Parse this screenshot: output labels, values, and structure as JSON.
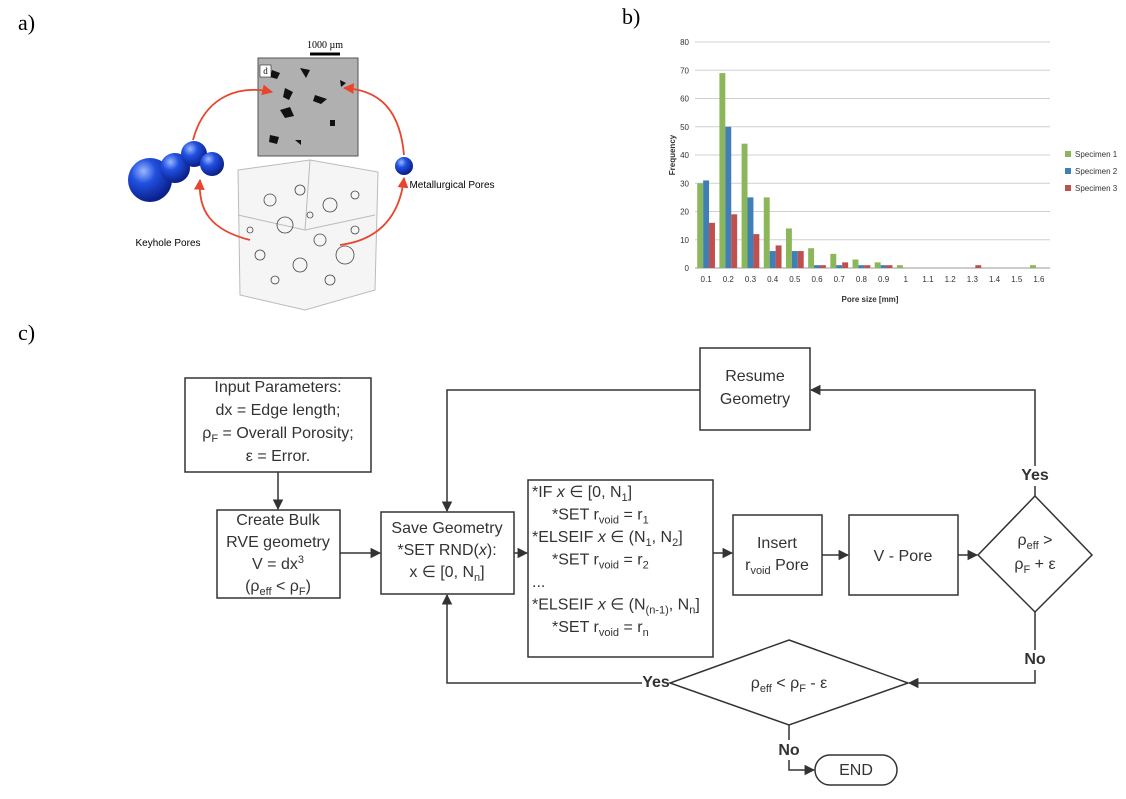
{
  "panel_labels": [
    "a)",
    "b)",
    "c)"
  ],
  "panel_a": {
    "scale_bar": "1000 µm",
    "inset_label": "d",
    "labels": [
      "Keyhole Pores",
      "Metallurgical Pores"
    ]
  },
  "chart_data": {
    "type": "bar",
    "ylabel": "Frequency",
    "xlabel": "Pore size [mm]",
    "categories": [
      "0.1",
      "0.2",
      "0.3",
      "0.4",
      "0.5",
      "0.6",
      "0.7",
      "0.8",
      "0.9",
      "1",
      "1.1",
      "1.2",
      "1.3",
      "1.4",
      "1.5",
      "1.6"
    ],
    "series": [
      {
        "name": "Specimen 1",
        "color": "#8cb65a",
        "values": [
          30,
          69,
          44,
          25,
          14,
          7,
          5,
          3,
          2,
          1,
          0,
          0,
          0,
          0,
          0,
          1
        ]
      },
      {
        "name": "Specimen 2",
        "color": "#3f7fb5",
        "values": [
          31,
          50,
          25,
          6,
          6,
          1,
          1,
          1,
          1,
          0,
          0,
          0,
          0,
          0,
          0,
          0
        ]
      },
      {
        "name": "Specimen 3",
        "color": "#c0504d",
        "values": [
          16,
          19,
          12,
          8,
          6,
          1,
          2,
          1,
          1,
          0,
          0,
          0,
          1,
          0,
          0,
          0
        ]
      }
    ],
    "ylim": [
      0,
      80
    ],
    "yticks": [
      0,
      10,
      20,
      30,
      40,
      50,
      60,
      70,
      80
    ],
    "grid": true,
    "legend": "right"
  },
  "flowchart": {
    "input": [
      [
        "Input Parameters:"
      ],
      [
        "dx = Edge length;"
      ],
      [
        "ρ",
        "F",
        " = Overall Porosity;"
      ],
      [
        "ε = Error."
      ]
    ],
    "create": [
      [
        "Create Bulk"
      ],
      [
        "RVE geometry"
      ],
      [
        "V = dx",
        "3"
      ],
      [
        "(ρ",
        "eff",
        " < ρ",
        "F",
        ")"
      ]
    ],
    "save": [
      [
        "Save Geometry"
      ],
      [
        "*SET RND(",
        "x",
        "):"
      ],
      [
        "x ∈ [0, N",
        "n",
        "]"
      ]
    ],
    "resume": [
      [
        "Resume"
      ],
      [
        "Geometry"
      ]
    ],
    "ifblock": [
      [
        "*IF ",
        "x",
        " ∈ [0, N",
        "1",
        "]"
      ],
      [
        "*SET r",
        "void",
        " = r",
        "1"
      ],
      [
        "*ELSEIF ",
        "x",
        " ∈ (N",
        "1",
        ", N",
        "2",
        "]"
      ],
      [
        "*SET r",
        "void",
        " = r",
        "2"
      ],
      [
        "..."
      ],
      [
        "*ELSEIF ",
        "x",
        " ∈ (N",
        "(n-1)",
        ", N",
        "n",
        "]"
      ],
      [
        "*SET r",
        "void",
        " = r",
        "n"
      ]
    ],
    "insert": [
      [
        "Insert"
      ],
      [
        "r",
        "void",
        " Pore"
      ]
    ],
    "vpore": [
      [
        "V - Pore"
      ]
    ],
    "decision1": [
      [
        "ρ",
        "eff",
        " >"
      ],
      [
        "ρ",
        "F",
        " + ε"
      ]
    ],
    "decision2": [
      [
        "ρ",
        "eff",
        " < ρ",
        "F",
        " - ε"
      ]
    ],
    "end": [
      [
        "END"
      ]
    ],
    "edge_labels": [
      "Yes",
      "No",
      "Yes",
      "No"
    ]
  }
}
